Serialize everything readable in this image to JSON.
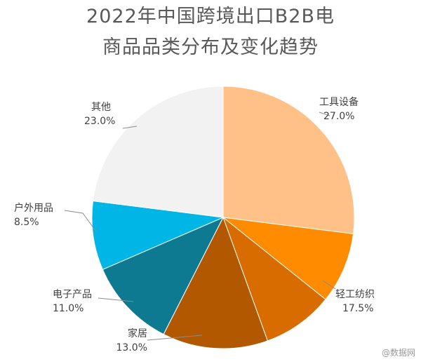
{
  "chart_data": {
    "type": "pie",
    "title_line1": "2022年中国跨境出口B2B电",
    "title_line2": "商品品类分布及变化趋势",
    "slices": [
      {
        "label": "工具设备",
        "value": 27.0,
        "value_text": "27.0%",
        "color": "#FFC187"
      },
      {
        "label": "轻工纺织",
        "value": 17.5,
        "value_text": "17.5%",
        "color": "#FF8B00"
      },
      {
        "label": "",
        "value": 0,
        "value_text": "",
        "color": "#D96C00"
      },
      {
        "label": "家居",
        "value": 13.0,
        "value_text": "13.0%",
        "color": "#B25800"
      },
      {
        "label": "电子产品",
        "value": 11.0,
        "value_text": "11.0%",
        "color": "#0E7A92"
      },
      {
        "label": "户外用品",
        "value": 8.5,
        "value_text": "8.5%",
        "color": "#00B6E6"
      },
      {
        "label": "其他",
        "value": 23.0,
        "value_text": "23.0%",
        "color": "#F2F2F2"
      }
    ]
  },
  "watermark": "@数据网"
}
